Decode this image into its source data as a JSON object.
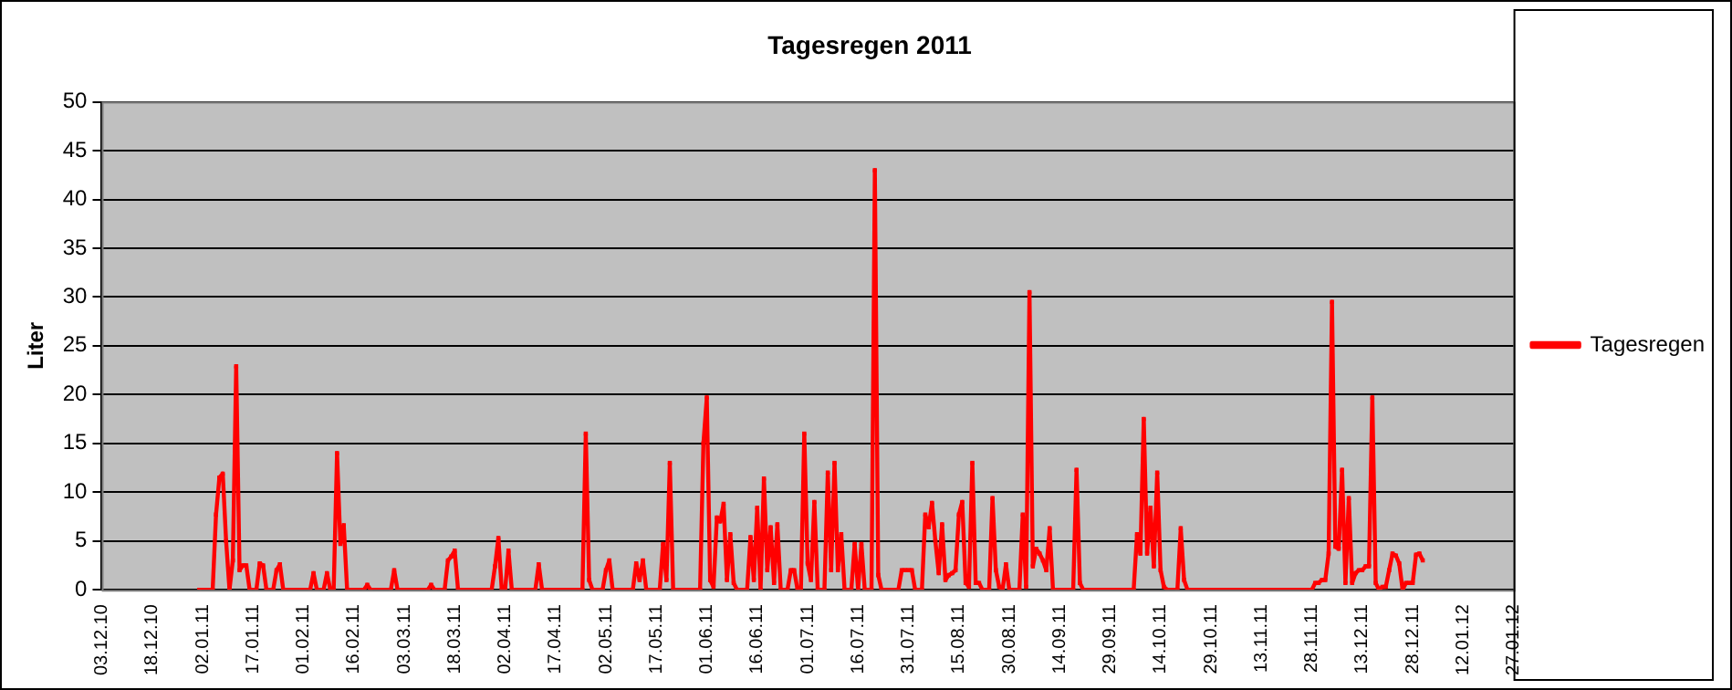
{
  "chart_data": {
    "type": "line",
    "title": "Tagesregen 2011",
    "ylabel": "Liter",
    "legend": "right",
    "grid": "y",
    "marker": "square",
    "line_style": "solid",
    "xlim": [
      "2010-12-03",
      "2012-01-27"
    ],
    "xticks": [
      {
        "value": "2010-12-03",
        "label": "03.12.10"
      },
      {
        "value": "2010-12-18",
        "label": "18.12.10"
      },
      {
        "value": "2011-01-02",
        "label": "02.01.11"
      },
      {
        "value": "2011-01-17",
        "label": "17.01.11"
      },
      {
        "value": "2011-02-01",
        "label": "01.02.11"
      },
      {
        "value": "2011-02-16",
        "label": "16.02.11"
      },
      {
        "value": "2011-03-03",
        "label": "03.03.11"
      },
      {
        "value": "2011-03-18",
        "label": "18.03.11"
      },
      {
        "value": "2011-04-02",
        "label": "02.04.11"
      },
      {
        "value": "2011-04-17",
        "label": "17.04.11"
      },
      {
        "value": "2011-05-02",
        "label": "02.05.11"
      },
      {
        "value": "2011-05-17",
        "label": "17.05.11"
      },
      {
        "value": "2011-06-01",
        "label": "01.06.11"
      },
      {
        "value": "2011-06-16",
        "label": "16.06.11"
      },
      {
        "value": "2011-07-01",
        "label": "01.07.11"
      },
      {
        "value": "2011-07-16",
        "label": "16.07.11"
      },
      {
        "value": "2011-07-31",
        "label": "31.07.11"
      },
      {
        "value": "2011-08-15",
        "label": "15.08.11"
      },
      {
        "value": "2011-08-30",
        "label": "30.08.11"
      },
      {
        "value": "2011-09-14",
        "label": "14.09.11"
      },
      {
        "value": "2011-09-29",
        "label": "29.09.11"
      },
      {
        "value": "2011-10-14",
        "label": "14.10.11"
      },
      {
        "value": "2011-10-29",
        "label": "29.10.11"
      },
      {
        "value": "2011-11-13",
        "label": "13.11.11"
      },
      {
        "value": "2011-11-28",
        "label": "28.11.11"
      },
      {
        "value": "2011-12-13",
        "label": "13.12.11"
      },
      {
        "value": "2011-12-28",
        "label": "28.12.11"
      },
      {
        "value": "2012-01-12",
        "label": "12.01.12"
      },
      {
        "value": "2012-01-27",
        "label": "27.01.12"
      }
    ],
    "ylim": [
      0,
      50
    ],
    "yticks": [
      0,
      5,
      10,
      15,
      20,
      25,
      30,
      35,
      40,
      45,
      50
    ],
    "x": [
      "2011-01-01",
      "2011-01-05",
      "2011-01-06",
      "2011-01-07",
      "2011-01-08",
      "2011-01-09",
      "2011-01-10",
      "2011-01-11",
      "2011-01-12",
      "2011-01-13",
      "2011-01-14",
      "2011-01-15",
      "2011-01-16",
      "2011-01-18",
      "2011-01-19",
      "2011-01-20",
      "2011-01-21",
      "2011-01-23",
      "2011-01-24",
      "2011-01-25",
      "2011-01-26",
      "2011-02-03",
      "2011-02-04",
      "2011-02-05",
      "2011-02-07",
      "2011-02-08",
      "2011-02-09",
      "2011-02-10",
      "2011-02-11",
      "2011-02-12",
      "2011-02-13",
      "2011-02-14",
      "2011-02-19",
      "2011-02-20",
      "2011-02-21",
      "2011-02-27",
      "2011-02-28",
      "2011-03-01",
      "2011-03-10",
      "2011-03-11",
      "2011-03-12",
      "2011-03-15",
      "2011-03-16",
      "2011-03-17",
      "2011-03-18",
      "2011-03-19",
      "2011-03-29",
      "2011-03-30",
      "2011-03-31",
      "2011-04-01",
      "2011-04-02",
      "2011-04-03",
      "2011-04-04",
      "2011-04-11",
      "2011-04-12",
      "2011-04-13",
      "2011-04-25",
      "2011-04-26",
      "2011-04-27",
      "2011-04-28",
      "2011-05-01",
      "2011-05-02",
      "2011-05-03",
      "2011-05-04",
      "2011-05-10",
      "2011-05-11",
      "2011-05-12",
      "2011-05-13",
      "2011-05-14",
      "2011-05-18",
      "2011-05-19",
      "2011-05-20",
      "2011-05-21",
      "2011-05-22",
      "2011-05-30",
      "2011-05-31",
      "2011-06-01",
      "2011-06-02",
      "2011-06-03",
      "2011-06-04",
      "2011-06-05",
      "2011-06-06",
      "2011-06-07",
      "2011-06-08",
      "2011-06-09",
      "2011-06-10",
      "2011-06-13",
      "2011-06-14",
      "2011-06-15",
      "2011-06-16",
      "2011-06-17",
      "2011-06-18",
      "2011-06-19",
      "2011-06-20",
      "2011-06-21",
      "2011-06-22",
      "2011-06-23",
      "2011-06-25",
      "2011-06-26",
      "2011-06-27",
      "2011-06-28",
      "2011-06-29",
      "2011-06-30",
      "2011-07-01",
      "2011-07-02",
      "2011-07-03",
      "2011-07-04",
      "2011-07-06",
      "2011-07-07",
      "2011-07-08",
      "2011-07-09",
      "2011-07-10",
      "2011-07-11",
      "2011-07-12",
      "2011-07-14",
      "2011-07-15",
      "2011-07-16",
      "2011-07-17",
      "2011-07-18",
      "2011-07-20",
      "2011-07-21",
      "2011-07-22",
      "2011-07-23",
      "2011-07-28",
      "2011-07-29",
      "2011-07-30",
      "2011-07-31",
      "2011-08-01",
      "2011-08-02",
      "2011-08-04",
      "2011-08-05",
      "2011-08-06",
      "2011-08-07",
      "2011-08-08",
      "2011-08-09",
      "2011-08-10",
      "2011-08-11",
      "2011-08-12",
      "2011-08-13",
      "2011-08-14",
      "2011-08-15",
      "2011-08-16",
      "2011-08-17",
      "2011-08-18",
      "2011-08-19",
      "2011-08-20",
      "2011-08-21",
      "2011-08-22",
      "2011-08-24",
      "2011-08-25",
      "2011-08-26",
      "2011-08-27",
      "2011-08-28",
      "2011-08-29",
      "2011-08-30",
      "2011-09-02",
      "2011-09-03",
      "2011-09-04",
      "2011-09-05",
      "2011-09-06",
      "2011-09-07",
      "2011-09-08",
      "2011-09-09",
      "2011-09-10",
      "2011-09-11",
      "2011-09-12",
      "2011-09-18",
      "2011-09-19",
      "2011-09-20",
      "2011-09-21",
      "2011-10-06",
      "2011-10-07",
      "2011-10-08",
      "2011-10-09",
      "2011-10-10",
      "2011-10-11",
      "2011-10-12",
      "2011-10-13",
      "2011-10-14",
      "2011-10-15",
      "2011-10-16",
      "2011-10-19",
      "2011-10-20",
      "2011-10-21",
      "2011-10-22",
      "2011-11-28",
      "2011-11-29",
      "2011-11-30",
      "2011-12-01",
      "2011-12-02",
      "2011-12-03",
      "2011-12-04",
      "2011-12-05",
      "2011-12-06",
      "2011-12-07",
      "2011-12-08",
      "2011-12-09",
      "2011-12-10",
      "2011-12-11",
      "2011-12-12",
      "2011-12-13",
      "2011-12-14",
      "2011-12-15",
      "2011-12-16",
      "2011-12-17",
      "2011-12-18",
      "2011-12-19",
      "2011-12-20",
      "2011-12-21",
      "2011-12-22",
      "2011-12-23",
      "2011-12-24",
      "2011-12-25",
      "2011-12-26",
      "2011-12-27",
      "2011-12-28",
      "2011-12-29",
      "2011-12-30",
      "2011-12-31"
    ],
    "series": [
      {
        "name": "Tagesregen",
        "color": "#ff0000",
        "values": [
          0,
          0,
          7.7,
          11.5,
          11.9,
          5,
          0,
          3,
          22.9,
          2,
          2.5,
          2.5,
          0,
          0,
          2.7,
          2.5,
          0,
          0,
          2,
          2.6,
          0,
          0,
          1.7,
          0,
          0,
          1.7,
          0,
          0,
          14,
          4.7,
          6.6,
          0,
          0,
          0.5,
          0,
          0,
          2,
          0,
          0,
          0.5,
          0,
          0,
          3,
          3.4,
          4,
          0,
          0,
          2.4,
          5.3,
          0,
          0,
          4,
          0,
          0,
          2.6,
          0,
          0,
          16,
          1,
          0,
          0,
          2,
          3,
          0,
          0,
          2.7,
          1,
          3,
          0,
          0,
          4.7,
          1,
          13,
          0,
          0,
          15,
          19.7,
          1,
          0.3,
          7.4,
          7,
          8.8,
          1,
          5.7,
          0.7,
          0,
          0,
          5.4,
          1,
          8.4,
          0,
          11.4,
          2,
          6.4,
          0.7,
          6.7,
          0,
          0,
          2,
          2,
          0,
          0,
          16,
          2.7,
          1,
          9,
          0,
          0,
          12,
          2,
          13,
          2,
          5.7,
          0,
          0,
          4.7,
          0,
          4.7,
          0,
          0,
          43,
          1.5,
          0,
          0,
          2,
          2,
          2,
          2,
          0,
          0,
          7.7,
          6.4,
          8.9,
          5,
          1.7,
          6.7,
          1,
          1.5,
          1.7,
          2,
          7.7,
          9,
          0.7,
          0.3,
          13,
          0.7,
          0.7,
          0,
          0,
          9.4,
          2,
          0.3,
          0,
          2.6,
          0,
          0,
          7.7,
          0.3,
          30.5,
          2.4,
          4.2,
          3.7,
          3,
          2,
          6.3,
          0,
          0,
          12.3,
          0.7,
          0,
          0,
          5.7,
          3.7,
          17.5,
          3.7,
          8.4,
          2.4,
          12,
          2,
          0.3,
          0,
          0,
          6.3,
          1,
          0,
          0,
          0.7,
          0.7,
          1,
          1,
          3.7,
          29.5,
          4.4,
          4.2,
          12.3,
          0.7,
          9.4,
          0.7,
          1.7,
          2,
          2,
          2.4,
          2.4,
          19.7,
          0.7,
          0,
          0.3,
          0.3,
          2,
          3.7,
          3.5,
          2.7,
          0,
          0.7,
          0.7,
          0.7,
          3.6,
          3.7,
          3
        ]
      }
    ]
  }
}
